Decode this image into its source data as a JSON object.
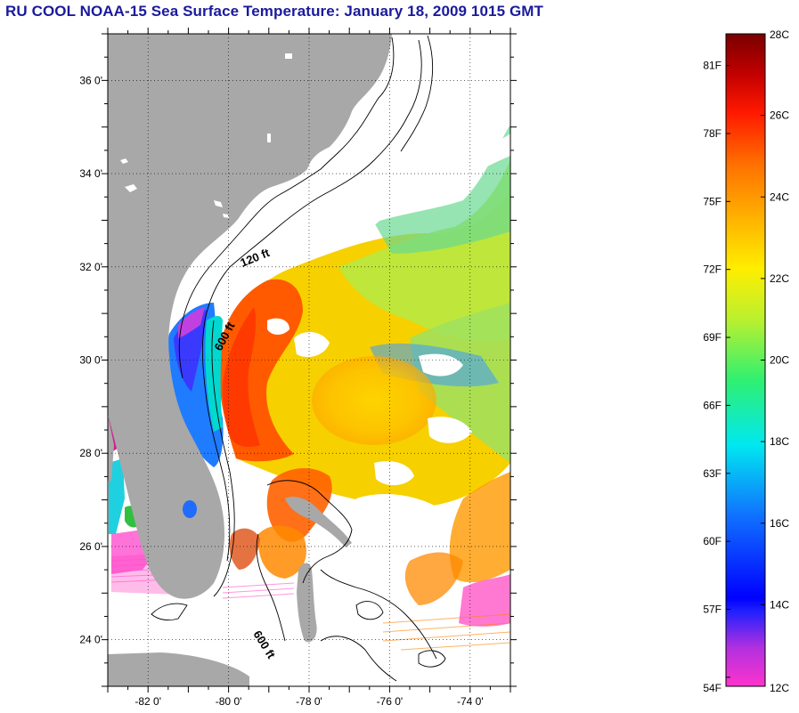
{
  "title": "RU COOL  NOAA-15  Sea Surface Temperature:  January 18, 2009 1015 GMT",
  "map": {
    "lon_range": [
      -83,
      -73
    ],
    "lat_range": [
      23,
      37
    ],
    "lat_tick_labels": [
      "36 0'",
      "34 0'",
      "32 0'",
      "30 0'",
      "28 0'",
      "26 0'",
      "24 0'"
    ],
    "lat_tick_values": [
      36,
      34,
      32,
      30,
      28,
      26,
      24
    ],
    "lon_tick_labels": [
      "-82 0'",
      "-80 0'",
      "-78 0'",
      "-76 0'",
      "-74 0'"
    ],
    "lon_tick_values": [
      -82,
      -80,
      -78,
      -76,
      -74
    ],
    "contour_labels": [
      "120 ft",
      "600 ft",
      "600 ft"
    ],
    "land_color": "#a8a8a8",
    "ocean_no_data_color": "#ffffff"
  },
  "colorbar": {
    "celsius_labels": [
      "28C",
      "26C",
      "24C",
      "22C",
      "20C",
      "18C",
      "16C",
      "14C",
      "12C"
    ],
    "celsius_values": [
      28,
      26,
      24,
      22,
      20,
      18,
      16,
      14,
      12
    ],
    "fahrenheit_labels": [
      "81F",
      "78F",
      "75F",
      "72F",
      "69F",
      "66F",
      "63F",
      "60F",
      "57F",
      "54F"
    ],
    "fahrenheit_values": [
      81,
      78,
      75,
      72,
      69,
      66,
      63,
      60,
      57,
      54
    ],
    "range_c": [
      12,
      28
    ],
    "colors": [
      "#ff33cc",
      "#7a28e6",
      "#0000ff",
      "#0a6cff",
      "#00e0f0",
      "#2bf07a",
      "#c8f028",
      "#ffee00",
      "#ffaa00",
      "#ff6600",
      "#ff0000",
      "#a80000",
      "#7a0000"
    ]
  }
}
